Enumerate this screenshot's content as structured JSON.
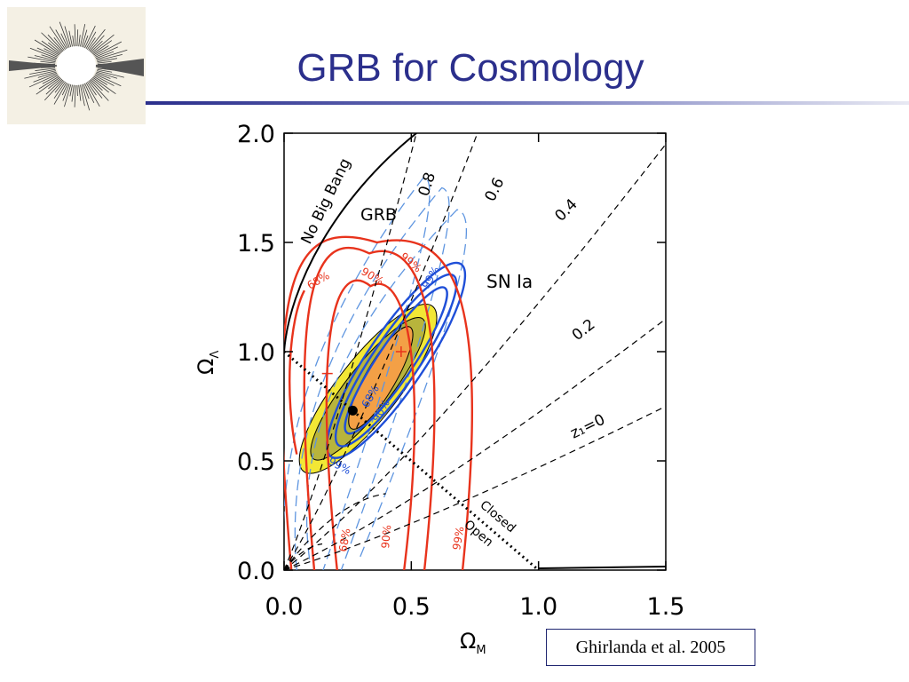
{
  "slide": {
    "title": "GRB for Cosmology",
    "citation": "Ghirlanda et al. 2005",
    "logo_icon": "grb-jet-icon",
    "title_color": "#2b2f8c"
  },
  "chart_data": {
    "type": "contour",
    "xlabel": "Ω",
    "xlabel_sub": "M",
    "ylabel": "Ω",
    "ylabel_sub": "Λ",
    "xlim": [
      0.0,
      1.5
    ],
    "ylim": [
      0.0,
      2.0
    ],
    "xticks": [
      "0.0",
      "0.5",
      "1.0",
      "1.5"
    ],
    "yticks": [
      "0.0",
      "0.5",
      "1.0",
      "1.5",
      "2.0"
    ],
    "grid": false,
    "best_fit_point": {
      "x": 0.27,
      "y": 0.73
    },
    "grb_best_fit": [
      {
        "x": 0.17,
        "y": 0.9
      },
      {
        "x": 0.46,
        "y": 1.0
      }
    ],
    "labels": {
      "no_big_bang": "No Big Bang",
      "grb": "GRB",
      "sn_ia": "SN Ia",
      "closed": "Closed",
      "open": "Open",
      "z_labels": [
        "0.8",
        "0.6",
        "0.4",
        "0.2",
        "z₁=0"
      ],
      "grb_conf": [
        "68%",
        "90%",
        "99%"
      ],
      "sn_conf": [
        "68%",
        "90%",
        "99%"
      ],
      "joint_conf": [
        "68%",
        "90%",
        "99%"
      ]
    },
    "colors": {
      "grb": "#e8331c",
      "sn_ia": "#1f4fd8",
      "sn_dashed": "#5e95e0",
      "joint_outer": "#f2e735",
      "joint_mid": "#b8b43c",
      "joint_inner": "#f3a046",
      "closed_open_line": "#000000"
    }
  }
}
